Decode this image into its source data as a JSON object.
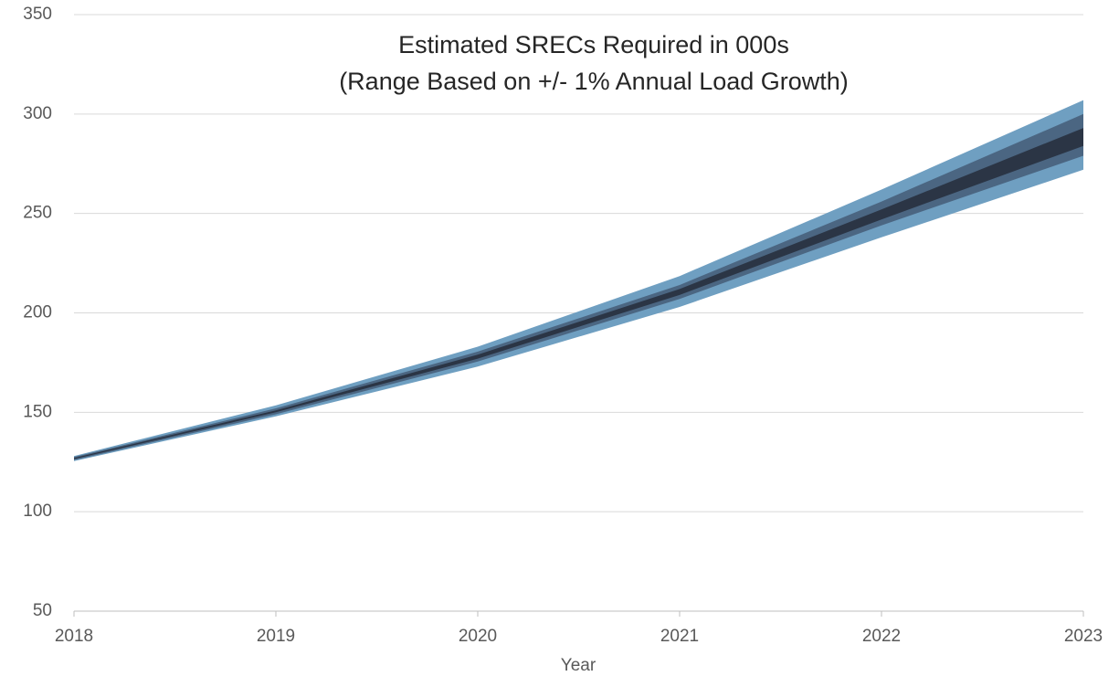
{
  "chart_data": {
    "type": "band",
    "title": "Estimated SRECs Required in 000s",
    "subtitle": "(Range Based on +/- 1% Annual Load Growth)",
    "x_label": "Year",
    "x": [
      2018,
      2019,
      2020,
      2021,
      2022,
      2023
    ],
    "xlim": [
      2018,
      2023
    ],
    "xticks": [
      2018,
      2019,
      2020,
      2021,
      2022,
      2023
    ],
    "ylim": [
      50,
      350
    ],
    "yticks": [
      50,
      100,
      150,
      200,
      250,
      300,
      350
    ],
    "grid": true,
    "series": [
      {
        "color": "#6f9fc1",
        "low": [
          125.5,
          148,
          173,
          203,
          238,
          272
        ],
        "high": [
          128,
          153.5,
          183,
          218.5,
          262,
          307
        ]
      },
      {
        "color": "#4b6682",
        "low": [
          126,
          149,
          175.5,
          207,
          244,
          279
        ],
        "high": [
          127.5,
          152,
          180.5,
          214,
          256,
          300
        ]
      },
      {
        "color": "#2b3545",
        "low": [
          126.5,
          150,
          177,
          209,
          247,
          284
        ],
        "high": [
          127,
          151,
          179,
          212,
          252,
          293
        ]
      }
    ]
  }
}
